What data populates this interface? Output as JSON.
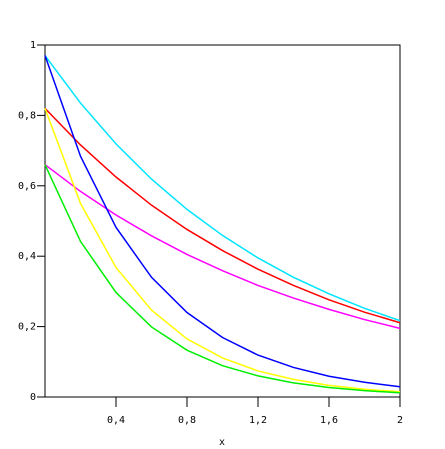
{
  "chart_data": {
    "type": "line",
    "x": [
      0,
      0.2,
      0.4,
      0.6,
      0.8,
      1,
      1.2,
      1.4,
      1.6,
      1.8,
      2
    ],
    "x_label": "x",
    "series": [
      {
        "color": "#00e5ff",
        "values": [
          0.97,
          0.835,
          0.719,
          0.619,
          0.533,
          0.459,
          0.395,
          0.34,
          0.293,
          0.252,
          0.217
        ]
      },
      {
        "color": "#ff0000",
        "values": [
          0.82,
          0.716,
          0.625,
          0.545,
          0.476,
          0.416,
          0.363,
          0.317,
          0.276,
          0.241,
          0.211
        ]
      },
      {
        "color": "#ff00ff",
        "values": [
          0.66,
          0.584,
          0.517,
          0.458,
          0.405,
          0.359,
          0.317,
          0.281,
          0.249,
          0.22,
          0.195
        ]
      },
      {
        "color": "#0000ff",
        "values": [
          0.97,
          0.684,
          0.482,
          0.34,
          0.24,
          0.169,
          0.119,
          0.084,
          0.059,
          0.042,
          0.029
        ]
      },
      {
        "color": "#ffff00",
        "values": [
          0.82,
          0.55,
          0.368,
          0.247,
          0.165,
          0.111,
          0.074,
          0.05,
          0.033,
          0.022,
          0.015
        ]
      },
      {
        "color": "#00ee00",
        "values": [
          0.66,
          0.442,
          0.297,
          0.199,
          0.133,
          0.089,
          0.06,
          0.04,
          0.027,
          0.018,
          0.012
        ]
      }
    ],
    "xlim": [
      0,
      2
    ],
    "ylim": [
      0,
      1
    ],
    "xticks": [
      {
        "value": 0.4,
        "label": "0,4"
      },
      {
        "value": 0.8,
        "label": "0,8"
      },
      {
        "value": 1.2,
        "label": "1,2"
      },
      {
        "value": 1.6,
        "label": "1,6"
      },
      2
    ],
    "yticks": [
      0,
      {
        "value": 0.2,
        "label": "0,2"
      },
      {
        "value": 0.4,
        "label": "0,4"
      },
      {
        "value": 0.6,
        "label": "0,6"
      },
      {
        "value": 0.8,
        "label": "0,8"
      },
      1
    ]
  }
}
